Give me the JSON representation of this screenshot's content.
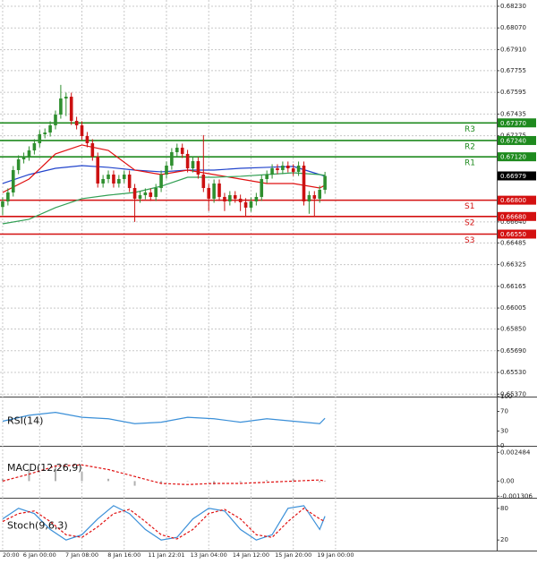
{
  "chart_data": [
    {
      "type": "candlestick",
      "xlim": [
        -0.5,
        93.5
      ],
      "xticks": [
        {
          "value": 0,
          "label": "20:00"
        },
        {
          "value": 7,
          "label": "6 Jan 00:00"
        },
        {
          "value": 15,
          "label": "7 Jan 08:00"
        },
        {
          "value": 23,
          "label": "8 Jan 16:00"
        },
        {
          "value": 31,
          "label": "11 Jan 22:01"
        },
        {
          "value": 39,
          "label": "13 Jan 04:00"
        },
        {
          "value": 47,
          "label": "14 Jan 12:00"
        },
        {
          "value": 55,
          "label": "15 Jan 20:00"
        },
        {
          "value": 63,
          "label": "19 Jan 00:00"
        }
      ],
      "ylim": [
        0.65352,
        0.68276
      ],
      "yticks": [
        {
          "value": 0.6823,
          "label": "0.68230"
        },
        {
          "value": 0.6807,
          "label": "0.68070"
        },
        {
          "value": 0.6791,
          "label": "0.67910"
        },
        {
          "value": 0.67755,
          "label": "0.67755"
        },
        {
          "value": 0.67595,
          "label": "0.67595"
        },
        {
          "value": 0.67435,
          "label": "0.67435"
        },
        {
          "value": 0.67275,
          "label": "0.67275"
        },
        {
          "value": 0.6664,
          "label": "0.66640"
        },
        {
          "value": 0.66485,
          "label": "0.66485"
        },
        {
          "value": 0.66325,
          "label": "0.66325"
        },
        {
          "value": 0.66165,
          "label": "0.66165"
        },
        {
          "value": 0.66005,
          "label": "0.66005"
        },
        {
          "value": 0.6585,
          "label": "0.65850"
        },
        {
          "value": 0.6569,
          "label": "0.65690"
        },
        {
          "value": 0.6553,
          "label": "0.65530"
        },
        {
          "value": 0.6537,
          "label": "0.65370"
        }
      ],
      "grid": true,
      "up_color": "#2f8f2f",
      "down_color": "#cc1111",
      "open": [
        0.6675,
        0.66791,
        0.66857,
        0.67022,
        0.67101,
        0.67121,
        0.67167,
        0.6722,
        0.67286,
        0.67299,
        0.67352,
        0.67431,
        0.6755,
        0.67563,
        0.67385,
        0.67352,
        0.67273,
        0.6722,
        0.67121,
        0.66923,
        0.66956,
        0.66989,
        0.66923,
        0.66956,
        0.66989,
        0.6689,
        0.66811,
        0.66837,
        0.66857,
        0.66824,
        0.6689,
        0.66989,
        0.67055,
        0.67154,
        0.67187,
        0.67141,
        0.67035,
        0.67088,
        0.66989,
        0.6689,
        0.66811,
        0.66923,
        0.66824,
        0.66791,
        0.66837,
        0.66811,
        0.66785,
        0.66745,
        0.66791,
        0.66824,
        0.66956,
        0.66989,
        0.67035,
        0.67022,
        0.67055,
        0.67035,
        0.67009,
        0.67055,
        0.66791,
        0.66837,
        0.66811,
        0.66877
      ],
      "high": [
        0.66821,
        0.66887,
        0.67052,
        0.67131,
        0.67151,
        0.67197,
        0.6725,
        0.67316,
        0.67329,
        0.67382,
        0.67461,
        0.6765,
        0.67593,
        0.67593,
        0.67415,
        0.67382,
        0.67303,
        0.6725,
        0.67151,
        0.66986,
        0.67019,
        0.67019,
        0.66986,
        0.67019,
        0.67019,
        0.6692,
        0.66867,
        0.66887,
        0.66887,
        0.6692,
        0.67019,
        0.67085,
        0.67184,
        0.67217,
        0.67217,
        0.67171,
        0.67118,
        0.67118,
        0.6728,
        0.6692,
        0.66953,
        0.66953,
        0.66854,
        0.66867,
        0.66867,
        0.66841,
        0.66815,
        0.66821,
        0.66854,
        0.66986,
        0.67019,
        0.67065,
        0.67065,
        0.67085,
        0.67085,
        0.67065,
        0.67085,
        0.67085,
        0.66867,
        0.66867,
        0.66907,
        0.67009
      ],
      "low": [
        0.6669,
        0.66761,
        0.66827,
        0.66992,
        0.67071,
        0.67091,
        0.67137,
        0.6719,
        0.67256,
        0.67269,
        0.67322,
        0.67401,
        0.6742,
        0.67355,
        0.67322,
        0.67243,
        0.6719,
        0.67091,
        0.66893,
        0.66893,
        0.66926,
        0.66893,
        0.66893,
        0.66926,
        0.6686,
        0.6664,
        0.66781,
        0.66807,
        0.66794,
        0.66794,
        0.6686,
        0.66959,
        0.67025,
        0.67124,
        0.67111,
        0.67005,
        0.67005,
        0.66959,
        0.6686,
        0.6672,
        0.66781,
        0.66794,
        0.6672,
        0.66761,
        0.66781,
        0.6672,
        0.6668,
        0.66715,
        0.66761,
        0.66794,
        0.66926,
        0.66959,
        0.66992,
        0.66992,
        0.67005,
        0.66979,
        0.66979,
        0.66761,
        0.667,
        0.6668,
        0.66781,
        0.66847
      ],
      "close": [
        0.66791,
        0.66857,
        0.67022,
        0.67101,
        0.67121,
        0.67167,
        0.6722,
        0.67286,
        0.67299,
        0.67352,
        0.67431,
        0.6755,
        0.67563,
        0.67385,
        0.67352,
        0.67273,
        0.6722,
        0.67121,
        0.66923,
        0.66956,
        0.66989,
        0.66923,
        0.66956,
        0.66989,
        0.6689,
        0.66811,
        0.66837,
        0.66857,
        0.66824,
        0.6689,
        0.66989,
        0.67055,
        0.67154,
        0.67187,
        0.67141,
        0.67035,
        0.67088,
        0.66989,
        0.6689,
        0.66811,
        0.66923,
        0.66824,
        0.66791,
        0.66837,
        0.66811,
        0.66785,
        0.66745,
        0.66791,
        0.66824,
        0.66956,
        0.66989,
        0.67035,
        0.67022,
        0.67055,
        0.67035,
        0.67009,
        0.67055,
        0.66791,
        0.66837,
        0.66811,
        0.66877,
        0.66979
      ],
      "series": [
        {
          "color": "#2244cc",
          "x": [
            0,
            5,
            10,
            15,
            20,
            25,
            30,
            35,
            40,
            45,
            50,
            55,
            60,
            61
          ],
          "values": [
            0.66923,
            0.66989,
            0.67035,
            0.67055,
            0.67042,
            0.67022,
            0.67009,
            0.67022,
            0.67022,
            0.67035,
            0.67042,
            0.67049,
            0.66989,
            0.66976
          ]
        },
        {
          "color": "#e01010",
          "x": [
            0,
            5,
            10,
            15,
            20,
            25,
            30,
            35,
            40,
            45,
            50,
            55,
            60,
            61
          ],
          "values": [
            0.66857,
            0.66956,
            0.67141,
            0.67207,
            0.67167,
            0.67022,
            0.66989,
            0.67022,
            0.66989,
            0.66956,
            0.66923,
            0.66923,
            0.6689,
            0.6691
          ]
        },
        {
          "color": "#33a055",
          "x": [
            0,
            5,
            10,
            15,
            20,
            25,
            30,
            35,
            40,
            45,
            50,
            55,
            60,
            61
          ],
          "values": [
            0.66626,
            0.66659,
            0.66745,
            0.66811,
            0.66837,
            0.66857,
            0.66903,
            0.66969,
            0.66969,
            0.66976,
            0.66989,
            0.67002,
            0.66989,
            0.66983
          ]
        }
      ],
      "levels": [
        {
          "name": "R3",
          "value": 0.6737,
          "value_label": "0.67370",
          "color": "#1e8a1e"
        },
        {
          "name": "R2",
          "value": 0.6724,
          "value_label": "0.67240",
          "color": "#1e8a1e"
        },
        {
          "name": "R1",
          "value": 0.6712,
          "value_label": "0.67120",
          "color": "#1e8a1e"
        },
        {
          "name": "S1",
          "value": 0.668,
          "value_label": "0.66800",
          "color": "#d41111"
        },
        {
          "name": "S2",
          "value": 0.6668,
          "value_label": "0.66680",
          "color": "#d41111"
        },
        {
          "name": "S3",
          "value": 0.6655,
          "value_label": "0.66550",
          "color": "#d41111"
        }
      ],
      "last": {
        "value": 0.66979,
        "label": "0.66979",
        "color": "#000000"
      }
    },
    {
      "type": "line",
      "title": "RSI(14)",
      "ylim": [
        0,
        100
      ],
      "yticks": [
        0,
        30,
        70,
        100
      ],
      "series": [
        {
          "color": "#3a8fd8",
          "x": [
            0,
            5,
            10,
            15,
            20,
            25,
            30,
            35,
            40,
            45,
            50,
            55,
            60,
            61
          ],
          "values": [
            50,
            62,
            68,
            58,
            55,
            45,
            48,
            58,
            55,
            48,
            55,
            50,
            45,
            56
          ]
        }
      ]
    },
    {
      "type": "line",
      "title": "MACD(12,26,9)",
      "ylim": [
        -0.00144,
        0.00305
      ],
      "yticks": [
        {
          "value": 0.002484,
          "label": "0.002484"
        },
        {
          "value": 0,
          "label": "0.00"
        },
        {
          "value": -0.001306,
          "label": "-0.001306"
        }
      ],
      "series": [
        {
          "type": "bar",
          "color": "#b0b0b0",
          "x": [
            0,
            5,
            10,
            15,
            20,
            25,
            30,
            35,
            40,
            45,
            50,
            55,
            60,
            61
          ],
          "values": [
            0.0002,
            0.001,
            0.0014,
            0.0008,
            0.0002,
            -0.0004,
            -0.0002,
            0,
            -0.0003,
            -0.0001,
            0.0001,
            0.0002,
            -0.0001,
            0
          ]
        },
        {
          "dash": true,
          "color": "#e01010",
          "x": [
            0,
            5,
            10,
            15,
            20,
            25,
            30,
            35,
            40,
            45,
            50,
            55,
            60,
            61
          ],
          "values": [
            0,
            0.0006,
            0.0013,
            0.0014,
            0.001,
            0.0004,
            -0.0002,
            -0.0003,
            -0.0002,
            -0.0002,
            -0.0001,
            0,
            0.0001,
            0
          ]
        }
      ]
    },
    {
      "type": "line",
      "title": "Stoch(9,6,3)",
      "ylim": [
        0,
        100
      ],
      "yticks": [
        20,
        80
      ],
      "series": [
        {
          "color": "#3a8fd8",
          "x": [
            0,
            3,
            6,
            9,
            12,
            15,
            18,
            21,
            24,
            27,
            30,
            33,
            36,
            39,
            42,
            45,
            48,
            51,
            54,
            57,
            60,
            61
          ],
          "values": [
            60,
            80,
            70,
            40,
            20,
            30,
            60,
            85,
            70,
            40,
            20,
            25,
            60,
            80,
            75,
            40,
            20,
            30,
            80,
            85,
            40,
            65
          ]
        },
        {
          "dash": true,
          "color": "#e01010",
          "x": [
            0,
            3,
            6,
            9,
            12,
            15,
            18,
            21,
            24,
            27,
            30,
            33,
            36,
            39,
            42,
            45,
            48,
            51,
            54,
            57,
            60,
            61
          ],
          "values": [
            55,
            70,
            75,
            55,
            30,
            25,
            45,
            70,
            78,
            55,
            30,
            22,
            40,
            70,
            78,
            60,
            30,
            25,
            55,
            80,
            60,
            55
          ]
        }
      ]
    }
  ]
}
